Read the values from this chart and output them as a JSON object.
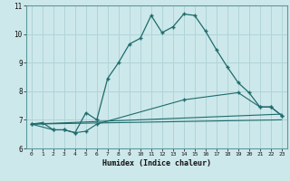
{
  "xlabel": "Humidex (Indice chaleur)",
  "bg_color": "#cde8eb",
  "line_color": "#1e6b6b",
  "grid_color": "#b0d4d8",
  "xlim": [
    -0.5,
    23.5
  ],
  "ylim": [
    6,
    11
  ],
  "xticks": [
    0,
    1,
    2,
    3,
    4,
    5,
    6,
    7,
    8,
    9,
    10,
    11,
    12,
    13,
    14,
    15,
    16,
    17,
    18,
    19,
    20,
    21,
    22,
    23
  ],
  "yticks": [
    6,
    7,
    8,
    9,
    10,
    11
  ],
  "line1_x": [
    0,
    1,
    2,
    3,
    4,
    5,
    6,
    7,
    8,
    9,
    10,
    11,
    12,
    13,
    14,
    15,
    16,
    17,
    18,
    19,
    20,
    21,
    22,
    23
  ],
  "line1_y": [
    6.85,
    6.9,
    6.65,
    6.65,
    6.55,
    7.25,
    7.0,
    8.45,
    9.0,
    9.65,
    9.85,
    10.65,
    10.05,
    10.25,
    10.7,
    10.65,
    10.1,
    9.45,
    8.85,
    8.3,
    7.95,
    7.45,
    7.45,
    7.15
  ],
  "line2_x": [
    0,
    2,
    3,
    4,
    5,
    6,
    14,
    19,
    21,
    22,
    23
  ],
  "line2_y": [
    6.85,
    6.65,
    6.65,
    6.55,
    6.6,
    6.85,
    7.7,
    7.95,
    7.45,
    7.45,
    7.15
  ],
  "line3_x": [
    0,
    23
  ],
  "line3_y": [
    6.85,
    7.2
  ],
  "line4_x": [
    0,
    23
  ],
  "line4_y": [
    6.85,
    7.0
  ]
}
